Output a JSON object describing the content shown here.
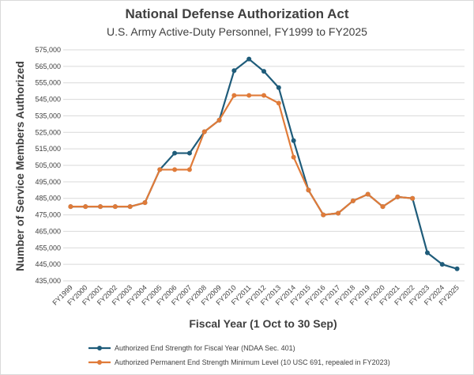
{
  "chart_data": {
    "type": "line",
    "title": "National Defense Authorization Act",
    "subtitle": "U.S. Army Active-Duty Personnel, FY1999 to FY2025",
    "xlabel": "Fiscal Year (1 Oct to 30 Sep)",
    "ylabel": "Number of Service Members Authorized",
    "ylim": [
      435000,
      575000
    ],
    "ytick_step": 10000,
    "ytick_labels": [
      "435,000",
      "445,000",
      "455,000",
      "465,000",
      "475,000",
      "485,000",
      "495,000",
      "505,000",
      "515,000",
      "525,000",
      "535,000",
      "545,000",
      "555,000",
      "565,000",
      "575,000"
    ],
    "grid": true,
    "legend_position": "bottom",
    "categories": [
      "FY1999",
      "FY2000",
      "FY2001",
      "FY2002",
      "FY2003",
      "FY2004",
      "FY2005",
      "FY2006",
      "FY2007",
      "FY2008",
      "FY2009",
      "FY2010",
      "FY2011",
      "FY2012",
      "FY2013",
      "FY2014",
      "FY2015",
      "FY2016",
      "FY2017",
      "FY2018",
      "FY2019",
      "FY2020",
      "FY2021",
      "FY2022",
      "FY2023",
      "FY2024",
      "FY2025"
    ],
    "series": [
      {
        "name": "Authorized End Strength for Fiscal Year (NDAA Sec. 401)",
        "color": "#1f5c7a",
        "values": [
          480000,
          480000,
          480000,
          480000,
          480000,
          482400,
          502400,
          512400,
          512400,
          525400,
          532400,
          562400,
          569400,
          562000,
          552100,
          520000,
          490000,
          475000,
          476000,
          483500,
          487500,
          480000,
          485900,
          485000,
          452000,
          445000,
          442300
        ]
      },
      {
        "name": "Authorized Permanent End Strength Minimum Level (10 USC 691, repealed in FY2023)",
        "color": "#e07b39",
        "values": [
          480000,
          480000,
          480000,
          480000,
          480000,
          482400,
          502400,
          502400,
          502400,
          525400,
          532400,
          547400,
          547400,
          547400,
          542700,
          510000,
          490000,
          475000,
          476000,
          483500,
          487500,
          480000,
          485900,
          485000,
          null,
          null,
          null
        ]
      }
    ]
  }
}
